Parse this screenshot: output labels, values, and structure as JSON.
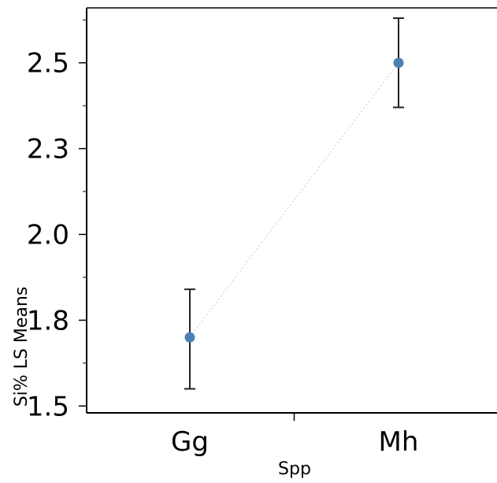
{
  "chart_data": {
    "type": "scatter",
    "categories": [
      "Gg",
      "Mh"
    ],
    "series": [
      {
        "values": [
          1.7,
          2.5
        ],
        "error_low": [
          1.55,
          2.37
        ],
        "error_high": [
          1.84,
          2.63
        ]
      }
    ],
    "xlabel": "Spp",
    "ylabel": "Si% LS Means",
    "ylim": [
      1.48,
      2.66
    ],
    "yticks": [
      "1.5",
      "1.8",
      "2.0",
      "2.3",
      "2.5"
    ],
    "ytick_values": [
      1.5,
      1.75,
      2.0,
      2.25,
      2.5
    ],
    "grid": false,
    "connector_line": "dotted",
    "colors": {
      "marker": "#4a82b4",
      "error_bar": "#222222",
      "axis": "#000000",
      "connector": "#c8c8c8"
    }
  }
}
